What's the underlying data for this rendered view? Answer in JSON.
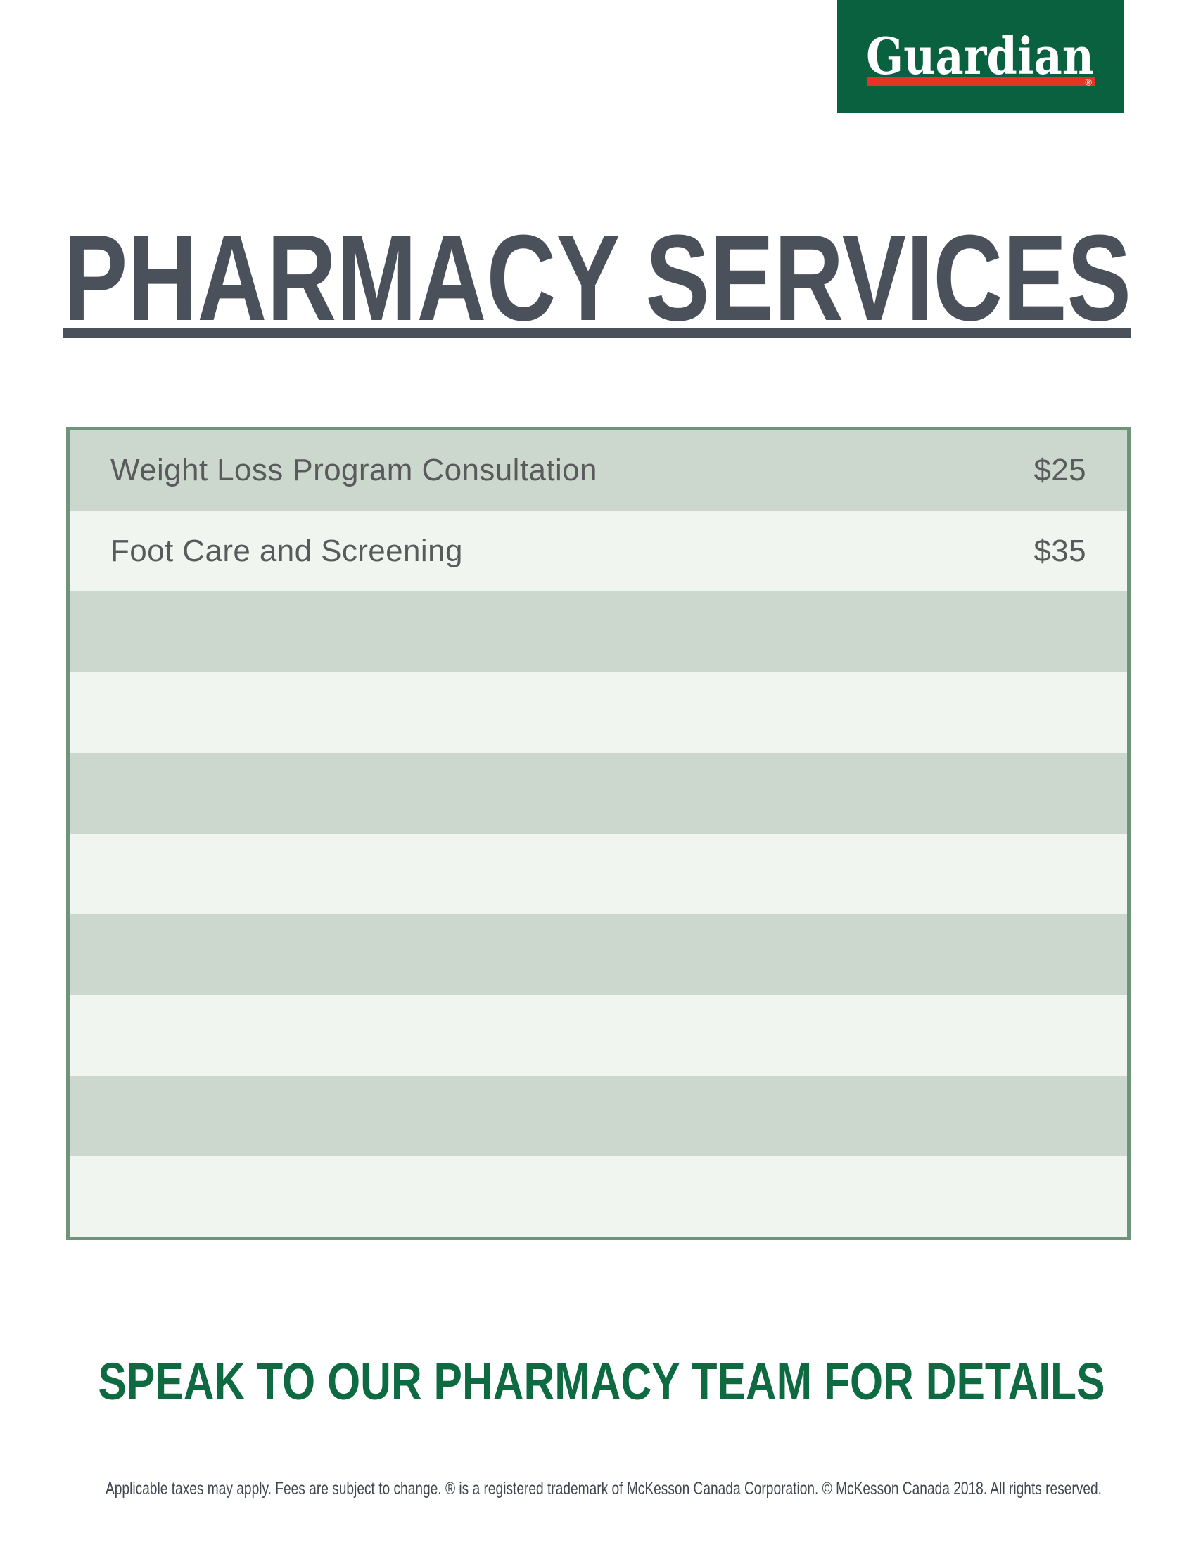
{
  "logo": {
    "brand": "Guardian",
    "registered_mark": "®",
    "bg_color": "#0a6140",
    "underline_color": "#e5332a",
    "text_color": "#ffffff"
  },
  "header": {
    "title": "PHARMACY SERVICES",
    "title_color": "#4b515a"
  },
  "services_table": {
    "border_color": "#6e9579",
    "row_color_dark": "#ccd8cd",
    "row_color_light": "#f0f5ef",
    "text_color": "#595a5c",
    "rows": [
      {
        "service": "Weight Loss Program Consultation",
        "price": "$25"
      },
      {
        "service": "Foot Care and Screening",
        "price": "$35"
      },
      {
        "service": "",
        "price": ""
      },
      {
        "service": "",
        "price": ""
      },
      {
        "service": "",
        "price": ""
      },
      {
        "service": "",
        "price": ""
      },
      {
        "service": "",
        "price": ""
      },
      {
        "service": "",
        "price": ""
      },
      {
        "service": "",
        "price": ""
      },
      {
        "service": "",
        "price": ""
      }
    ]
  },
  "footer": {
    "headline": "SPEAK TO OUR PHARMACY TEAM FOR DETAILS",
    "headline_color": "#0d6a41",
    "disclaimer": "Applicable taxes may apply. Fees are subject to change. ® is a registered trademark of McKesson Canada Corporation. © McKesson Canada 2018. All rights reserved.",
    "disclaimer_color": "#414750"
  }
}
